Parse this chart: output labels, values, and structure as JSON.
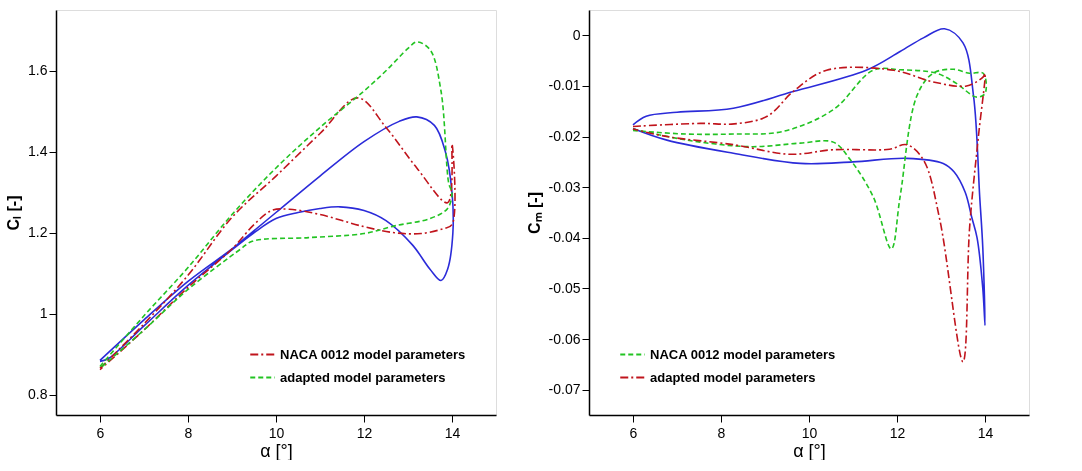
{
  "chart_data": [
    {
      "type": "line",
      "xlabel": "α [°]",
      "ylabel": "Cₗ [-]",
      "xlim": [
        5,
        15
      ],
      "ylim": [
        0.75,
        1.75
      ],
      "xticks": [
        6,
        8,
        10,
        12,
        14
      ],
      "yticks": [
        0.8,
        1,
        1.2,
        1.4,
        1.6
      ],
      "grid": false,
      "legend": "bottom right",
      "marker": "none",
      "series": [
        {
          "color": "#2b2bd9",
          "line_style": "solid",
          "x": [
            6,
            7,
            8,
            9,
            9.2,
            10,
            11,
            12,
            12.8,
            13.2,
            13.6,
            13.85,
            14,
            14.02,
            13.9,
            13.75,
            13.5,
            13.1,
            12.5,
            12,
            11.45,
            11,
            10.5,
            10,
            9.5,
            9.2,
            8,
            7,
            6.2,
            6
          ],
          "values": [
            0.885,
            0.985,
            1.08,
            1.16,
            1.178,
            1.25,
            1.34,
            1.425,
            1.475,
            1.486,
            1.465,
            1.4,
            1.3,
            1.2,
            1.11,
            1.082,
            1.11,
            1.17,
            1.23,
            1.255,
            1.264,
            1.26,
            1.25,
            1.235,
            1.2,
            1.175,
            1.07,
            0.97,
            0.89,
            0.882
          ]
        },
        {
          "name": "NACA 0012 model parameters",
          "color": "#c0141c",
          "line_style": "dashdot",
          "x": [
            6,
            7,
            8,
            9,
            10,
            11,
            11.86,
            12.5,
            13.2,
            13.9,
            14,
            14,
            13.8,
            13.3,
            12.7,
            12,
            11,
            10.3,
            9.9,
            9.5,
            9,
            8,
            7,
            6
          ],
          "values": [
            0.865,
            0.975,
            1.095,
            1.238,
            1.34,
            1.445,
            1.533,
            1.46,
            1.36,
            1.274,
            1.419,
            1.22,
            1.21,
            1.198,
            1.2,
            1.215,
            1.245,
            1.258,
            1.255,
            1.22,
            1.16,
            1.065,
            0.96,
            0.862
          ]
        },
        {
          "name": "adapted model parameters",
          "color": "#22c322",
          "line_style": "dashed",
          "x": [
            6,
            7,
            8,
            9,
            10,
            11,
            12,
            12.5,
            13,
            13.2,
            13.5,
            13.75,
            13.93,
            14,
            13.9,
            13.5,
            12.7,
            12,
            10.74,
            9.46,
            9.2,
            8,
            7,
            6
          ],
          "values": [
            0.87,
            0.995,
            1.114,
            1.245,
            1.36,
            1.46,
            1.55,
            1.6,
            1.655,
            1.671,
            1.652,
            1.55,
            1.32,
            1.3,
            1.26,
            1.235,
            1.217,
            1.198,
            1.188,
            1.179,
            1.16,
            1.06,
            0.96,
            0.865
          ]
        }
      ]
    },
    {
      "type": "line",
      "xlabel": "α [°]",
      "ylabel": "Cₘ [-]",
      "xlim": [
        5,
        15
      ],
      "ylim": [
        -0.075,
        0.005
      ],
      "xticks": [
        6,
        8,
        10,
        12,
        14
      ],
      "yticks": [
        0,
        -0.01,
        -0.02,
        -0.03,
        -0.04,
        -0.05,
        -0.06,
        -0.07
      ],
      "grid": false,
      "legend": "bottom left",
      "marker": "none",
      "series": [
        {
          "color": "#2b2bd9",
          "line_style": "solid",
          "x": [
            6,
            6.3,
            7,
            8.28,
            9.64,
            11.3,
            12.07,
            12.6,
            13.08,
            13.5,
            13.74,
            13.88,
            13.95,
            14,
            13.95,
            13.82,
            13.7,
            13.55,
            13.3,
            13.05,
            12.22,
            11,
            9.8,
            8.28,
            6.77,
            6
          ],
          "values": [
            -0.0177,
            -0.016,
            -0.0152,
            -0.0144,
            -0.0111,
            -0.0069,
            -0.0032,
            -0.0005,
            0.0013,
            -0.0015,
            -0.012,
            -0.0319,
            -0.042,
            -0.0573,
            -0.05,
            -0.04,
            -0.036,
            -0.031,
            -0.027,
            -0.0253,
            -0.0243,
            -0.025,
            -0.0253,
            -0.0233,
            -0.0207,
            -0.0184
          ]
        },
        {
          "name": "NACA 0012 model parameters",
          "color": "#22c322",
          "line_style": "dashed",
          "x": [
            6,
            7.23,
            8.67,
            9.8,
            10.55,
            10.94,
            11.46,
            11.87,
            12.07,
            12.45,
            12.82,
            13.28,
            13.65,
            13.96,
            14,
            13.8,
            13.35,
            12.9,
            12.07,
            11.46,
            10.55,
            9.4,
            8.28,
            7.2,
            6
          ],
          "values": [
            -0.0185,
            -0.0207,
            -0.022,
            -0.0213,
            -0.0211,
            -0.0246,
            -0.0319,
            -0.0422,
            -0.0319,
            -0.012,
            -0.0075,
            -0.0067,
            -0.0075,
            -0.0075,
            -0.0115,
            -0.0122,
            -0.0095,
            -0.0075,
            -0.0068,
            -0.0069,
            -0.0147,
            -0.019,
            -0.0195,
            -0.0195,
            -0.0188
          ]
        },
        {
          "name": "adapted model parameters",
          "color": "#c0141c",
          "line_style": "dashdot",
          "x": [
            6,
            7.53,
            8.3,
            9.05,
            9.64,
            10.4,
            11.92,
            12.82,
            13.58,
            13.96,
            14,
            13.85,
            13.65,
            13.5,
            12.97,
            12.6,
            12.22,
            11.83,
            10.55,
            9.57,
            8.28,
            6.77,
            6
          ],
          "values": [
            -0.018,
            -0.0174,
            -0.0175,
            -0.016,
            -0.0111,
            -0.0069,
            -0.0069,
            -0.0092,
            -0.01,
            -0.0082,
            -0.0075,
            -0.02,
            -0.038,
            -0.0645,
            -0.0363,
            -0.0246,
            -0.0216,
            -0.0225,
            -0.0226,
            -0.0235,
            -0.0216,
            -0.02,
            -0.0185
          ]
        }
      ]
    }
  ]
}
